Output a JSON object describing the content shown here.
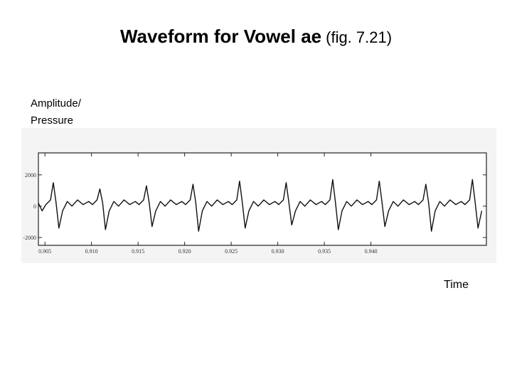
{
  "chart_data": {
    "type": "line",
    "title": "Waveform for Vowel ae",
    "title_note": "(fig. 7.21)",
    "y_label": [
      "Amplitude/",
      "Pressure"
    ],
    "x_label": "Time",
    "xlim": [
      0.9043,
      0.9524
    ],
    "ylim": [
      -2500,
      3400
    ],
    "xticks": [
      0.905,
      {
        "value": 0.91,
        "label": "0.910"
      },
      0.915,
      {
        "value": 0.92,
        "label": "0.920"
      },
      0.925,
      {
        "value": 0.93,
        "label": "0.930"
      },
      0.935,
      {
        "value": 0.94,
        "label": "0.940"
      }
    ],
    "yticks": [
      -2000,
      0,
      2000
    ],
    "series": [
      {
        "color": "#111111",
        "x": [
          0.9043,
          0.9047,
          0.9051,
          0.9056,
          0.9059,
          0.9062,
          0.9065,
          0.9069,
          0.9074,
          0.9079,
          0.9085,
          0.9091,
          0.9097,
          0.9101,
          0.9106,
          0.9109,
          0.9112,
          0.9115,
          0.9119,
          0.9124,
          0.9129,
          0.9135,
          0.9141,
          0.9147,
          0.9151,
          0.9156,
          0.9159,
          0.9162,
          0.9165,
          0.9169,
          0.9174,
          0.9179,
          0.9185,
          0.9191,
          0.9197,
          0.9201,
          0.9206,
          0.9209,
          0.9212,
          0.9215,
          0.9219,
          0.9224,
          0.9229,
          0.9235,
          0.9241,
          0.9247,
          0.9251,
          0.9256,
          0.9259,
          0.9262,
          0.9265,
          0.9269,
          0.9274,
          0.9279,
          0.9285,
          0.9291,
          0.9297,
          0.9301,
          0.9306,
          0.9309,
          0.9312,
          0.9315,
          0.9319,
          0.9324,
          0.9329,
          0.9335,
          0.9341,
          0.9347,
          0.9351,
          0.9356,
          0.9359,
          0.9362,
          0.9365,
          0.9369,
          0.9374,
          0.9379,
          0.9385,
          0.9391,
          0.9397,
          0.9401,
          0.9406,
          0.9409,
          0.9412,
          0.9415,
          0.9419,
          0.9424,
          0.9429,
          0.9435,
          0.9441,
          0.9447,
          0.9451,
          0.9456,
          0.9459,
          0.9462,
          0.9465,
          0.9469,
          0.9474,
          0.9479,
          0.9485,
          0.9491,
          0.9497,
          0.9501,
          0.9506,
          0.9509,
          0.9512,
          0.9515,
          0.9519
        ],
        "values": [
          200,
          -300,
          100,
          400,
          1500,
          200,
          -1400,
          -300,
          300,
          0,
          400,
          100,
          300,
          100,
          400,
          1100,
          200,
          -1500,
          -300,
          300,
          0,
          400,
          100,
          300,
          100,
          400,
          1300,
          200,
          -1300,
          -300,
          300,
          0,
          400,
          100,
          300,
          100,
          400,
          1400,
          200,
          -1600,
          -300,
          300,
          0,
          400,
          100,
          300,
          100,
          400,
          1600,
          200,
          -1400,
          -300,
          300,
          0,
          400,
          100,
          300,
          100,
          400,
          1500,
          200,
          -1200,
          -300,
          300,
          0,
          400,
          100,
          300,
          100,
          400,
          1700,
          200,
          -1500,
          -300,
          300,
          0,
          400,
          100,
          300,
          100,
          400,
          1600,
          200,
          -1300,
          -300,
          300,
          0,
          400,
          100,
          300,
          100,
          400,
          1400,
          200,
          -1600,
          -300,
          300,
          0,
          400,
          100,
          300,
          100,
          400,
          1700,
          200,
          -1400,
          -300
        ]
      }
    ]
  }
}
